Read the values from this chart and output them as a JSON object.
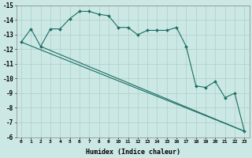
{
  "xlabel": "Humidex (Indice chaleur)",
  "bg_color": "#cce8e4",
  "grid_color": "#aacfcb",
  "line_color": "#1a6e64",
  "xlim": [
    -0.5,
    23.5
  ],
  "ylim": [
    -15,
    -6
  ],
  "yticks": [
    -15,
    -14,
    -13,
    -12,
    -11,
    -10,
    -9,
    -8,
    -7,
    -6
  ],
  "xtick_labels": [
    "0",
    "1",
    "2",
    "3",
    "4",
    "5",
    "6",
    "7",
    "8",
    "9",
    "10",
    "11",
    "12",
    "13",
    "14",
    "15",
    "16",
    "17",
    "18",
    "19",
    "20",
    "21",
    "22",
    "23"
  ],
  "series1_x": [
    0,
    1,
    2,
    3,
    4,
    5,
    6,
    7,
    8,
    9,
    10,
    11,
    12,
    13,
    14,
    15,
    16,
    17,
    18,
    19,
    20,
    21,
    22,
    23
  ],
  "series1_y": [
    -12.5,
    -13.4,
    -12.2,
    -13.4,
    -13.4,
    -14.1,
    -14.6,
    -14.6,
    -14.4,
    -14.3,
    -13.5,
    -13.5,
    -13.0,
    -13.3,
    -13.3,
    -13.3,
    -13.5,
    -12.2,
    -9.5,
    -9.4,
    -9.8,
    -8.7,
    -9.0,
    -6.4
  ],
  "line2_x": [
    0,
    23
  ],
  "line2_y": [
    -12.5,
    -6.4
  ],
  "line3_x": [
    2,
    23
  ],
  "line3_y": [
    -12.2,
    -6.4
  ]
}
